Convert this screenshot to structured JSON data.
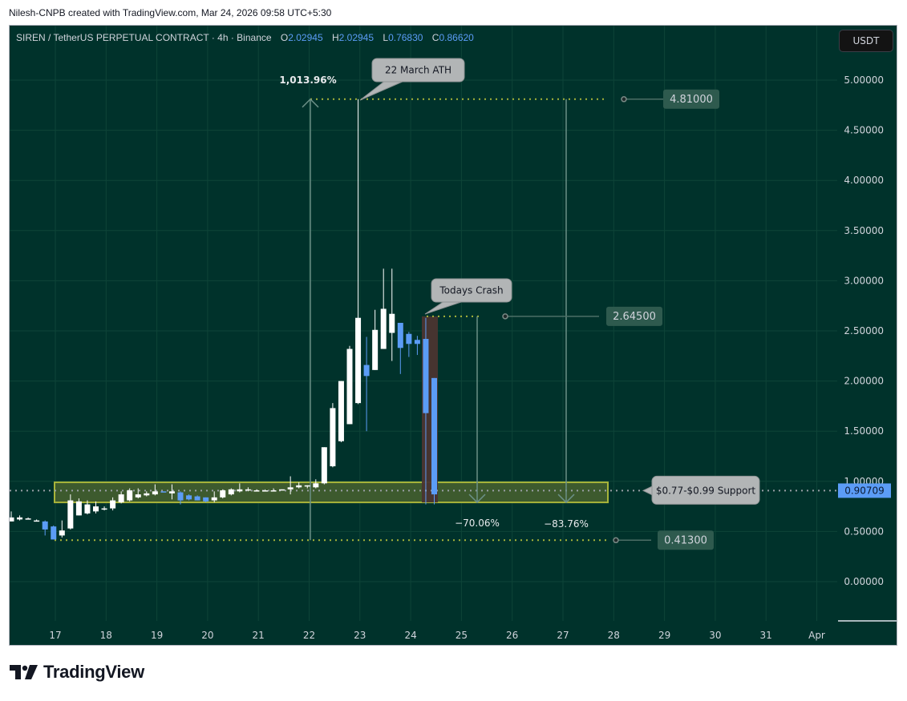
{
  "header": {
    "credit": "Nilesh-CNPB created with TradingView.com, Mar 24, 2026 09:58 UTC+5:30"
  },
  "legend": {
    "symbol": "SIREN / TetherUS PERPETUAL CONTRACT · 4h · Binance",
    "o_label": "O",
    "o_value": "2.02945",
    "h_label": "H",
    "h_value": "2.02945",
    "l_label": "L",
    "l_value": "0.76830",
    "c_label": "C",
    "c_value": "0.86620"
  },
  "currency_button": "USDT",
  "price_axis": [
    "5.00000",
    "4.50000",
    "4.00000",
    "3.50000",
    "3.00000",
    "2.50000",
    "2.00000",
    "1.50000",
    "1.00000",
    "0.50000",
    "0.00000"
  ],
  "time_axis": [
    "17",
    "18",
    "19",
    "20",
    "21",
    "22",
    "23",
    "24",
    "25",
    "26",
    "27",
    "28",
    "29",
    "30",
    "31",
    "Apr"
  ],
  "current_price": "0.90709",
  "annotations": {
    "ath_callout": "22 March ATH",
    "crash_callout": "Todays Crash",
    "support_callout": "$0.77-$0.99 Support",
    "gain_pct": "1,013.96%",
    "drop1_pct": "−70.06%",
    "drop2_pct": "−83.76%",
    "level_ath": "4.81000",
    "level_crash_top": "2.64500",
    "level_low": "0.41300"
  },
  "footer": {
    "brand": "TradingView"
  },
  "colors": {
    "background": "#00322b",
    "up_candle": "#ffffff",
    "down_candle": "#5b9cf6",
    "support_zone": "#3d5a2e",
    "support_border": "#a8b43a",
    "crash_highlight": "#4a3530",
    "callout_bg": "#b2b5b6",
    "price_tag": "#2e5a4e"
  },
  "chart_data": {
    "type": "candlestick",
    "title": "SIREN / TetherUS PERPETUAL CONTRACT · 4h · Binance",
    "xlabel": "",
    "ylabel": "USDT",
    "ylim": [
      -0.5,
      5.7
    ],
    "x_ticks": [
      "17",
      "18",
      "19",
      "20",
      "21",
      "22",
      "23",
      "24",
      "25",
      "26",
      "27",
      "28",
      "29",
      "30",
      "31",
      "Apr"
    ],
    "y_ticks": [
      0,
      0.5,
      1.0,
      1.5,
      2.0,
      2.5,
      3.0,
      3.5,
      4.0,
      4.5,
      5.0
    ],
    "grid": true,
    "ohlc_last": {
      "open": 2.02945,
      "high": 2.02945,
      "low": 0.7683,
      "close": 0.8662
    },
    "candles": [
      {
        "o": 0.6,
        "h": 0.7,
        "l": 0.6,
        "c": 0.64
      },
      {
        "o": 0.62,
        "h": 0.66,
        "l": 0.61,
        "c": 0.64
      },
      {
        "o": 0.62,
        "h": 0.64,
        "l": 0.62,
        "c": 0.63
      },
      {
        "o": 0.61,
        "h": 0.62,
        "l": 0.6,
        "c": 0.61
      },
      {
        "o": 0.6,
        "h": 0.61,
        "l": 0.46,
        "c": 0.52
      },
      {
        "o": 0.55,
        "h": 0.56,
        "l": 0.42,
        "c": 0.42
      },
      {
        "o": 0.46,
        "h": 0.61,
        "l": 0.44,
        "c": 0.51
      },
      {
        "o": 0.53,
        "h": 0.87,
        "l": 0.52,
        "c": 0.81
      },
      {
        "o": 0.66,
        "h": 0.83,
        "l": 0.66,
        "c": 0.8
      },
      {
        "o": 0.68,
        "h": 0.81,
        "l": 0.67,
        "c": 0.77
      },
      {
        "o": 0.7,
        "h": 0.8,
        "l": 0.68,
        "c": 0.75
      },
      {
        "o": 0.72,
        "h": 0.75,
        "l": 0.71,
        "c": 0.73
      },
      {
        "o": 0.73,
        "h": 0.84,
        "l": 0.71,
        "c": 0.81
      },
      {
        "o": 0.79,
        "h": 0.9,
        "l": 0.78,
        "c": 0.87
      },
      {
        "o": 0.81,
        "h": 0.93,
        "l": 0.8,
        "c": 0.91
      },
      {
        "o": 0.84,
        "h": 0.93,
        "l": 0.83,
        "c": 0.87
      },
      {
        "o": 0.86,
        "h": 0.9,
        "l": 0.85,
        "c": 0.88
      },
      {
        "o": 0.87,
        "h": 0.97,
        "l": 0.86,
        "c": 0.9
      },
      {
        "o": 0.9,
        "h": 0.9,
        "l": 0.89,
        "c": 0.89
      },
      {
        "o": 0.88,
        "h": 0.97,
        "l": 0.82,
        "c": 0.9
      },
      {
        "o": 0.89,
        "h": 0.9,
        "l": 0.77,
        "c": 0.81
      },
      {
        "o": 0.86,
        "h": 0.87,
        "l": 0.81,
        "c": 0.82
      },
      {
        "o": 0.85,
        "h": 0.86,
        "l": 0.81,
        "c": 0.81
      },
      {
        "o": 0.84,
        "h": 0.84,
        "l": 0.79,
        "c": 0.8
      },
      {
        "o": 0.81,
        "h": 0.9,
        "l": 0.79,
        "c": 0.84
      },
      {
        "o": 0.84,
        "h": 0.92,
        "l": 0.83,
        "c": 0.91
      },
      {
        "o": 0.87,
        "h": 0.93,
        "l": 0.86,
        "c": 0.92
      },
      {
        "o": 0.9,
        "h": 0.98,
        "l": 0.89,
        "c": 0.92
      },
      {
        "o": 0.91,
        "h": 0.94,
        "l": 0.9,
        "c": 0.92
      },
      {
        "o": 0.91,
        "h": 0.92,
        "l": 0.9,
        "c": 0.91
      },
      {
        "o": 0.91,
        "h": 0.92,
        "l": 0.9,
        "c": 0.91
      },
      {
        "o": 0.91,
        "h": 0.93,
        "l": 0.9,
        "c": 0.91
      },
      {
        "o": 0.91,
        "h": 0.92,
        "l": 0.91,
        "c": 0.92
      },
      {
        "o": 0.92,
        "h": 1.05,
        "l": 0.87,
        "c": 0.94
      },
      {
        "o": 0.94,
        "h": 0.99,
        "l": 0.93,
        "c": 0.96
      },
      {
        "o": 0.95,
        "h": 0.96,
        "l": 0.93,
        "c": 0.96
      },
      {
        "o": 0.94,
        "h": 1.02,
        "l": 0.93,
        "c": 0.98
      },
      {
        "o": 0.98,
        "h": 1.34,
        "l": 0.97,
        "c": 1.34
      },
      {
        "o": 1.15,
        "h": 1.78,
        "l": 1.14,
        "c": 1.73
      },
      {
        "o": 1.4,
        "h": 2.0,
        "l": 1.39,
        "c": 2.0
      },
      {
        "o": 1.57,
        "h": 2.35,
        "l": 1.57,
        "c": 2.32
      },
      {
        "o": 1.78,
        "h": 4.81,
        "l": 1.77,
        "c": 2.63
      },
      {
        "o": 2.16,
        "h": 2.44,
        "l": 1.5,
        "c": 2.05
      },
      {
        "o": 2.11,
        "h": 2.71,
        "l": 2.11,
        "c": 2.51
      },
      {
        "o": 2.32,
        "h": 3.12,
        "l": 2.32,
        "c": 2.72
      },
      {
        "o": 2.48,
        "h": 3.12,
        "l": 2.2,
        "c": 2.67
      },
      {
        "o": 2.58,
        "h": 2.58,
        "l": 2.07,
        "c": 2.33
      },
      {
        "o": 2.47,
        "h": 2.49,
        "l": 2.24,
        "c": 2.37
      },
      {
        "o": 2.41,
        "h": 2.45,
        "l": 2.26,
        "c": 2.37
      },
      {
        "o": 2.42,
        "h": 2.63,
        "l": 0.77,
        "c": 1.68
      },
      {
        "o": 2.03,
        "h": 2.03,
        "l": 0.77,
        "c": 0.87
      }
    ],
    "horizontal_levels": [
      4.81,
      2.645,
      0.413,
      0.90709
    ],
    "zones": [
      {
        "label": "$0.77-$0.99 Support",
        "from": 0.77,
        "to": 0.99
      }
    ],
    "measurements": [
      {
        "label": "1,013.96%",
        "from": 0.413,
        "to": 4.81
      },
      {
        "label": "−70.06%",
        "from": 2.645,
        "to": 0.79
      },
      {
        "label": "−83.76%",
        "from": 4.81,
        "to": 0.78
      }
    ],
    "callouts": [
      "22 March ATH",
      "Todays Crash",
      "$0.77-$0.99 Support"
    ]
  }
}
